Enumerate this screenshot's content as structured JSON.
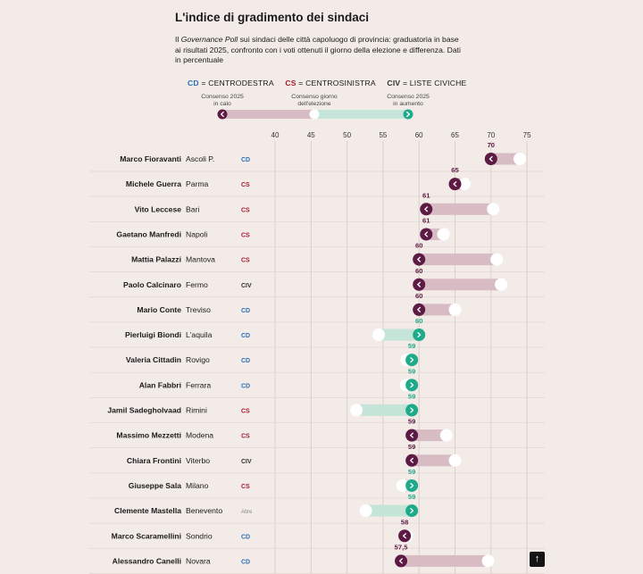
{
  "title": "L'indice di gradimento dei sindaci",
  "subtitle": {
    "before": "Il ",
    "italic": "Governance Poll",
    "after": " sui sindaci delle città capoluogo di provincia: graduatoria in base ai risultati 2025, confronto con i voti ottenuti il giorno della elezione e differenza. Dati in percentuale"
  },
  "legend": [
    {
      "code": "CD",
      "label": "= CENTRODESTRA",
      "color": "#2b6fb5"
    },
    {
      "code": "CS",
      "label": "= CENTROSINISTRA",
      "color": "#a51c30"
    },
    {
      "code": "CIV",
      "label": "= LISTE CIVICHE",
      "color": "#333333"
    }
  ],
  "key": {
    "down_label": "Consenso 2025 in calo",
    "election_label": "Consenso giorno dell'elezione",
    "up_label": "Consenso 2025 in aumento",
    "down_icon": "chevron-left-icon",
    "up_icon": "chevron-right-icon"
  },
  "colors": {
    "down": "#5c1a45",
    "up": "#1faa8a",
    "down_bar": "#d8bcc3",
    "up_bar": "#c4e5d8",
    "background": "#f3ebe7",
    "grid": "#dccfc8"
  },
  "chart_data": {
    "type": "dumbbell",
    "x_ticks": [
      40,
      45,
      50,
      55,
      60,
      65,
      70,
      75
    ],
    "xlim": [
      38.5,
      76
    ],
    "rows": [
      {
        "name": "Marco Fioravanti",
        "city": "Ascoli P.",
        "party": "CD",
        "value_2025": 70,
        "value_2025_label": "70",
        "election": 74
      },
      {
        "name": "Michele Guerra",
        "city": "Parma",
        "party": "CS",
        "value_2025": 65,
        "value_2025_label": "65",
        "election": 66.3
      },
      {
        "name": "Vito Leccese",
        "city": "Bari",
        "party": "CS",
        "value_2025": 61,
        "value_2025_label": "61",
        "election": 70.3
      },
      {
        "name": "Gaetano Manfredi",
        "city": "Napoli",
        "party": "CS",
        "value_2025": 61,
        "value_2025_label": "61",
        "election": 63.4
      },
      {
        "name": "Mattia Palazzi",
        "city": "Mantova",
        "party": "CS",
        "value_2025": 60,
        "value_2025_label": "60",
        "election": 70.8
      },
      {
        "name": "Paolo Calcinaro",
        "city": "Fermo",
        "party": "CIV",
        "value_2025": 60,
        "value_2025_label": "60",
        "election": 71.4
      },
      {
        "name": "Mario Conte",
        "city": "Treviso",
        "party": "CD",
        "value_2025": 60,
        "value_2025_label": "60",
        "election": 65
      },
      {
        "name": "Pierluigi Biondi",
        "city": "L'aquila",
        "party": "CD",
        "value_2025": 60,
        "value_2025_label": "60",
        "election": 54.4
      },
      {
        "name": "Valeria Cittadin",
        "city": "Rovigo",
        "party": "CD",
        "value_2025": 59,
        "value_2025_label": "59",
        "election": 58.3
      },
      {
        "name": "Alan Fabbri",
        "city": "Ferrara",
        "party": "CD",
        "value_2025": 59,
        "value_2025_label": "59",
        "election": 58.2
      },
      {
        "name": "Jamil Sadegholvaad",
        "city": "Rimini",
        "party": "CS",
        "value_2025": 59,
        "value_2025_label": "59",
        "election": 51.3
      },
      {
        "name": "Massimo Mezzetti",
        "city": "Modena",
        "party": "CS",
        "value_2025": 59,
        "value_2025_label": "59",
        "election": 63.8
      },
      {
        "name": "Chiara Frontini",
        "city": "Viterbo",
        "party": "CIV",
        "value_2025": 59,
        "value_2025_label": "59",
        "election": 65
      },
      {
        "name": "Giuseppe Sala",
        "city": "Milano",
        "party": "CS",
        "value_2025": 59,
        "value_2025_label": "59",
        "election": 57.7
      },
      {
        "name": "Clemente Mastella",
        "city": "Benevento",
        "party": "Altre",
        "value_2025": 59,
        "value_2025_label": "59",
        "election": 52.6
      },
      {
        "name": "Marco Scaramellini",
        "city": "Sondrio",
        "party": "CD",
        "value_2025": 58,
        "value_2025_label": "58",
        "election": 58.3
      },
      {
        "name": "Alessandro Canelli",
        "city": "Novara",
        "party": "CD",
        "value_2025": 57.5,
        "value_2025_label": "57,5",
        "election": 69.6
      }
    ]
  },
  "up_button_label": "↑"
}
